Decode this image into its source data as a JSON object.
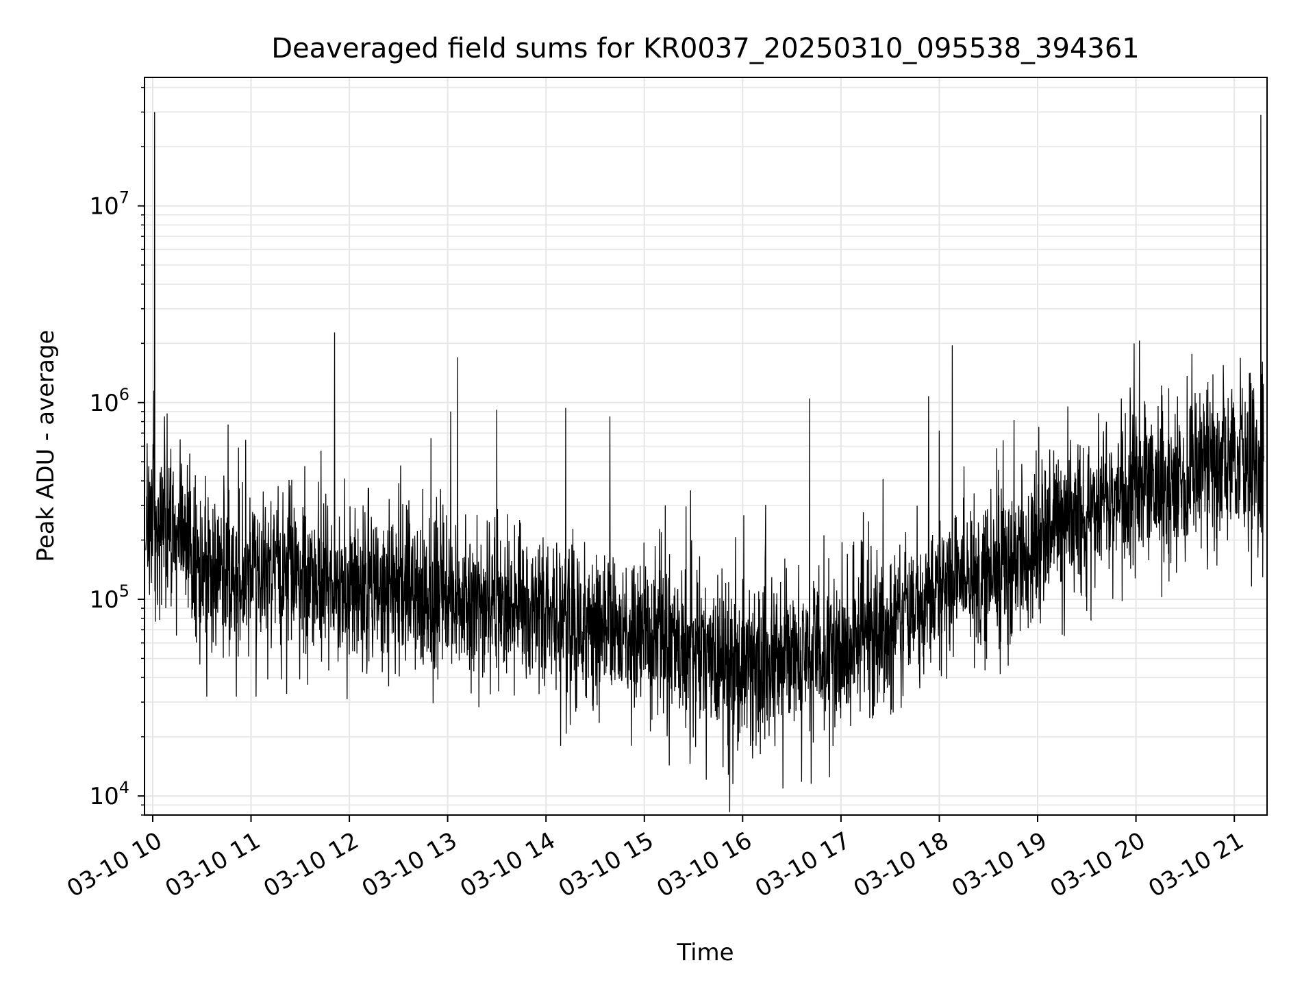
{
  "chart_data": {
    "type": "line",
    "title": "Deaveraged field sums for KR0037_20250310_095538_394361",
    "xlabel": "Time",
    "ylabel": "Peak ADU - average",
    "x_range": [
      "2025-03-10 09:55",
      "2025-03-10 21:20"
    ],
    "x_ticks": [
      "03-10 10",
      "03-10 11",
      "03-10 12",
      "03-10 13",
      "03-10 14",
      "03-10 15",
      "03-10 16",
      "03-10 17",
      "03-10 18",
      "03-10 19",
      "03-10 20",
      "03-10 21"
    ],
    "x_tick_hours": [
      10,
      11,
      12,
      13,
      14,
      15,
      16,
      17,
      18,
      19,
      20,
      21
    ],
    "y_scale": "log",
    "ylim": [
      8000,
      45000000
    ],
    "y_ticks": [
      {
        "value": 10000,
        "base": "10",
        "exp": "4"
      },
      {
        "value": 100000,
        "base": "10",
        "exp": "5"
      },
      {
        "value": 1000000,
        "base": "10",
        "exp": "6"
      },
      {
        "value": 10000000,
        "base": "10",
        "exp": "7"
      }
    ],
    "grid": true,
    "series_color": "#000000",
    "grid_color": "#e6e6e6",
    "baseline_profile": {
      "hours": [
        9.93,
        10.0,
        10.3,
        10.5,
        11.0,
        11.5,
        12.0,
        12.5,
        13.0,
        13.5,
        14.0,
        14.5,
        15.0,
        15.5,
        16.0,
        16.5,
        17.0,
        17.5,
        18.0,
        18.5,
        18.9,
        19.0,
        19.5,
        20.0,
        20.5,
        21.0,
        21.3
      ],
      "median_values": [
        280000,
        250000,
        200000,
        140000,
        130000,
        130000,
        115000,
        105000,
        100000,
        95000,
        85000,
        72000,
        65000,
        58000,
        50000,
        48000,
        50000,
        80000,
        110000,
        140000,
        170000,
        200000,
        280000,
        350000,
        420000,
        480000,
        480000
      ]
    },
    "spikes": [
      {
        "hour": 10.02,
        "value": 30000000
      },
      {
        "hour": 10.01,
        "value": 1150000
      },
      {
        "hour": 10.12,
        "value": 850000
      },
      {
        "hour": 10.28,
        "value": 650000
      },
      {
        "hour": 10.55,
        "value": 32000
      },
      {
        "hour": 10.85,
        "value": 32000
      },
      {
        "hour": 13.03,
        "value": 900000
      },
      {
        "hour": 13.1,
        "value": 1700000
      },
      {
        "hour": 13.5,
        "value": 920000
      },
      {
        "hour": 14.2,
        "value": 940000
      },
      {
        "hour": 14.15,
        "value": 18000
      },
      {
        "hour": 14.65,
        "value": 850000
      },
      {
        "hour": 15.8,
        "value": 14000
      },
      {
        "hour": 15.9,
        "value": 11500
      },
      {
        "hour": 15.95,
        "value": 17000
      },
      {
        "hour": 16.6,
        "value": 11800
      },
      {
        "hour": 16.68,
        "value": 1050000
      },
      {
        "hour": 18.0,
        "value": 720000
      },
      {
        "hour": 18.7,
        "value": 46000
      },
      {
        "hour": 19.7,
        "value": 800000
      },
      {
        "hour": 19.85,
        "value": 1050000
      },
      {
        "hour": 19.98,
        "value": 2000000
      },
      {
        "hour": 21.27,
        "value": 29000000
      },
      {
        "hour": 21.33,
        "value": 1500000
      }
    ]
  }
}
